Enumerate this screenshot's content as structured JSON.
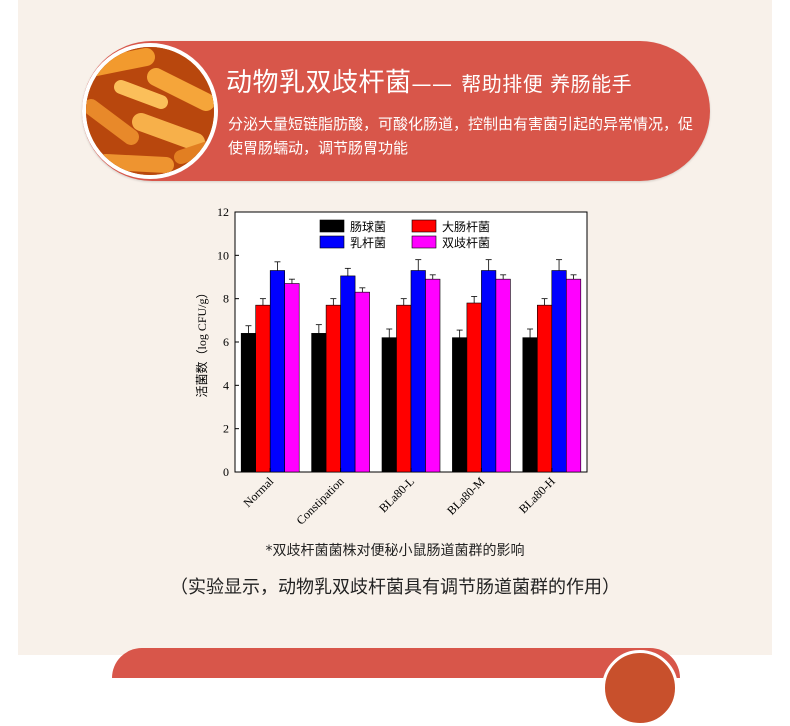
{
  "banner": {
    "title": "动物乳双歧杆菌",
    "dash": "——",
    "subtitle": "帮助排便 养肠能手",
    "description": "分泌大量短链脂肪酸，可酸化肠道，控制由有害菌引起的异常情况，促使胃肠蠕动，调节肠胃功能"
  },
  "caption": "*双歧杆菌菌株对便秘小鼠肠道菌群的影响",
  "note": "（实验显示，动物乳双歧杆菌具有调节肠道菌群的作用）",
  "chart_data": {
    "type": "bar",
    "ylabel": "活菌数（log CFU/g）",
    "ylim": [
      0,
      12
    ],
    "yticks": [
      0,
      2,
      4,
      6,
      8,
      10,
      12
    ],
    "categories": [
      "Normal",
      "Constipation",
      "BLa80-L",
      "BLa80-M",
      "BLa80-H"
    ],
    "legend": "top-left",
    "series": [
      {
        "name": "肠球菌",
        "color": "#000000",
        "values": [
          6.4,
          6.4,
          6.2,
          6.2,
          6.2
        ],
        "errors": [
          0.35,
          0.4,
          0.4,
          0.35,
          0.4
        ]
      },
      {
        "name": "大肠杆菌",
        "color": "#ff0000",
        "values": [
          7.7,
          7.7,
          7.7,
          7.8,
          7.7
        ],
        "errors": [
          0.3,
          0.3,
          0.3,
          0.3,
          0.3
        ]
      },
      {
        "name": "乳杆菌",
        "color": "#0000ff",
        "values": [
          9.3,
          9.05,
          9.3,
          9.3,
          9.3
        ],
        "errors": [
          0.4,
          0.35,
          0.5,
          0.5,
          0.5
        ]
      },
      {
        "name": "双歧杆菌",
        "color": "#ff00ff",
        "values": [
          8.7,
          8.3,
          8.9,
          8.9,
          8.9
        ],
        "errors": [
          0.2,
          0.2,
          0.2,
          0.2,
          0.2
        ]
      }
    ]
  }
}
